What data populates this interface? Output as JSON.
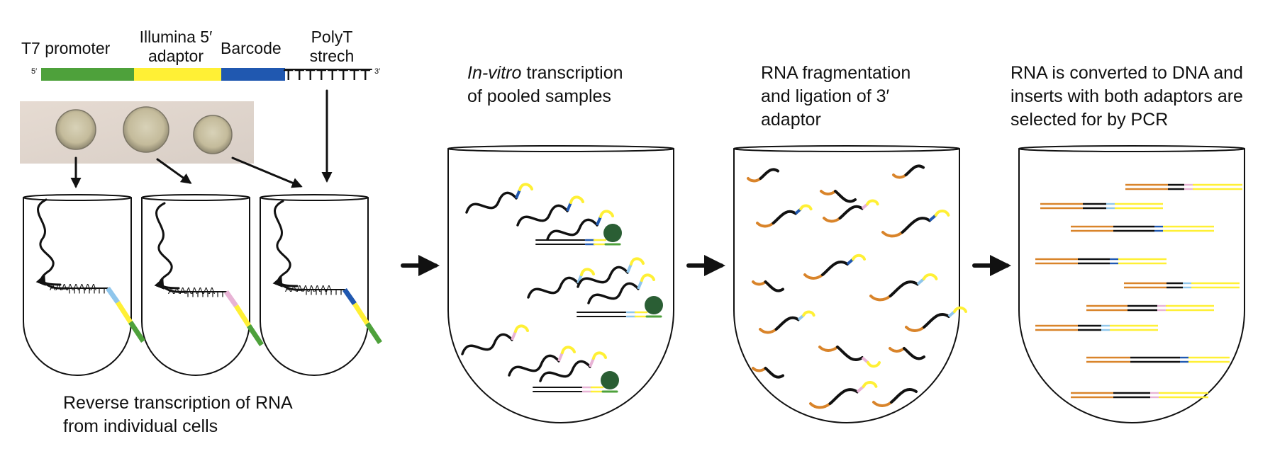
{
  "construct": {
    "labels": {
      "t7": "T7 promoter",
      "illumina_line1": "Illumina 5′",
      "illumina_line2": "adaptor",
      "barcode": "Barcode",
      "polyt_line1": "PolyT",
      "polyt_line2": "strech"
    },
    "end5": "5′",
    "end3": "3′",
    "polyt_seq": "TTTTTTTT"
  },
  "polya_seq": "AAAAAAAA",
  "steps": {
    "rt_line1": "Reverse transcription of RNA",
    "rt_line2": "from individual cells",
    "ivt_italic": "In-vitro",
    "ivt_rest": " transcription",
    "ivt_line2": "of pooled samples",
    "frag_line1": "RNA fragmentation",
    "frag_line2": "and ligation of 3′",
    "frag_line3": "adaptor",
    "pcr_line1": "RNA is converted to DNA and",
    "pcr_line2": "inserts with both adaptors are",
    "pcr_line3": "selected for by PCR"
  },
  "colors": {
    "green": "#4ea13b",
    "yellow": "#fff035",
    "blue": "#2058b0",
    "light_blue": "#8fc6ec",
    "pink": "#e8b3d5",
    "orange": "#d9842a",
    "dark_green": "#2a5e34",
    "black": "#111111"
  }
}
